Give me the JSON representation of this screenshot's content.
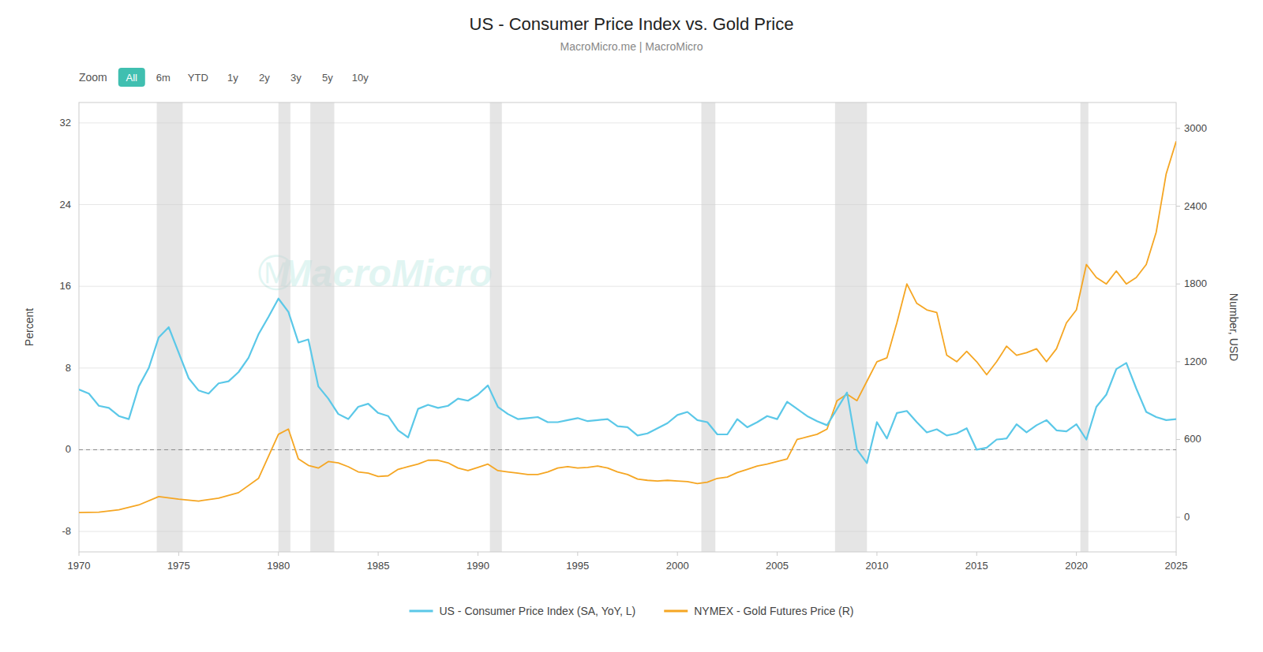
{
  "chart_data": {
    "type": "line",
    "title": "US - Consumer Price Index vs. Gold Price",
    "subtitle": "MacroMicro.me | MacroMicro",
    "ylabel": "Percent",
    "y2label": "Number, USD",
    "xlim": [
      1970,
      2025
    ],
    "xticks": [
      1970,
      1975,
      1980,
      1985,
      1990,
      1995,
      2000,
      2005,
      2010,
      2015,
      2020,
      2025
    ],
    "ylim": [
      -10,
      34
    ],
    "yticks": [
      -8,
      0,
      8,
      16,
      24,
      32
    ],
    "y2lim": [
      -267,
      3200
    ],
    "y2ticks": [
      0,
      600,
      1200,
      1800,
      2400,
      3000
    ],
    "grid": true,
    "legend": "bottom",
    "hlines": [
      0
    ],
    "recession_color": "#CCCCCC",
    "recession_bands": [
      [
        1973.9,
        1975.2
      ],
      [
        1980.0,
        1980.6
      ],
      [
        1981.6,
        1982.8
      ],
      [
        1990.6,
        1991.2
      ],
      [
        2001.2,
        2001.9
      ],
      [
        2007.9,
        2009.5
      ],
      [
        2020.2,
        2020.6
      ]
    ],
    "zoom": {
      "label": "Zoom",
      "buttons": [
        "All",
        "6m",
        "YTD",
        "1y",
        "2y",
        "3y",
        "5y",
        "10y"
      ],
      "active": "All",
      "active_color": "#40BFB0"
    },
    "watermark": {
      "symbol": "Ⓜ",
      "text": "MacroMicro",
      "color": "#40BFB0"
    },
    "series": [
      {
        "name": "US - Consumer Price Index (SA, YoY, L)",
        "color": "#5BC8E8",
        "axis": "y",
        "x": [
          1970,
          1970.5,
          1971,
          1971.5,
          1972,
          1972.5,
          1973,
          1973.5,
          1974,
          1974.5,
          1975,
          1975.5,
          1976,
          1976.5,
          1977,
          1977.5,
          1978,
          1978.5,
          1979,
          1979.5,
          1980,
          1980.5,
          1981,
          1981.5,
          1982,
          1982.5,
          1983,
          1983.5,
          1984,
          1984.5,
          1985,
          1985.5,
          1986,
          1986.5,
          1987,
          1987.5,
          1988,
          1988.5,
          1989,
          1989.5,
          1990,
          1990.5,
          1991,
          1991.5,
          1992,
          1992.5,
          1993,
          1993.5,
          1994,
          1994.5,
          1995,
          1995.5,
          1996,
          1996.5,
          1997,
          1997.5,
          1998,
          1998.5,
          1999,
          1999.5,
          2000,
          2000.5,
          2001,
          2001.5,
          2002,
          2002.5,
          2003,
          2003.5,
          2004,
          2004.5,
          2005,
          2005.5,
          2006,
          2006.5,
          2007,
          2007.5,
          2008,
          2008.5,
          2009,
          2009.5,
          2010,
          2010.5,
          2011,
          2011.5,
          2012,
          2012.5,
          2013,
          2013.5,
          2014,
          2014.5,
          2015,
          2015.5,
          2016,
          2016.5,
          2017,
          2017.5,
          2018,
          2018.5,
          2019,
          2019.5,
          2020,
          2020.5,
          2021,
          2021.5,
          2022,
          2022.5,
          2023,
          2023.5,
          2024,
          2024.5,
          2025
        ],
        "values": [
          5.9,
          5.5,
          4.3,
          4.1,
          3.3,
          3.0,
          6.2,
          8.0,
          11.0,
          12.0,
          9.5,
          7.0,
          5.8,
          5.5,
          6.5,
          6.7,
          7.6,
          9.0,
          11.3,
          13.0,
          14.8,
          13.5,
          10.5,
          10.8,
          6.2,
          5.0,
          3.5,
          3.0,
          4.2,
          4.5,
          3.6,
          3.3,
          1.9,
          1.2,
          4.0,
          4.4,
          4.1,
          4.3,
          5.0,
          4.8,
          5.4,
          6.3,
          4.2,
          3.5,
          3.0,
          3.1,
          3.2,
          2.7,
          2.7,
          2.9,
          3.1,
          2.8,
          2.9,
          3.0,
          2.3,
          2.2,
          1.4,
          1.6,
          2.1,
          2.6,
          3.4,
          3.7,
          2.9,
          2.7,
          1.5,
          1.5,
          3.0,
          2.2,
          2.7,
          3.3,
          3.0,
          4.7,
          4.0,
          3.3,
          2.8,
          2.4,
          4.0,
          5.6,
          0.0,
          -1.3,
          2.7,
          1.1,
          3.6,
          3.8,
          2.7,
          1.7,
          2.0,
          1.4,
          1.6,
          2.1,
          0.0,
          0.2,
          1.0,
          1.1,
          2.5,
          1.7,
          2.4,
          2.9,
          1.9,
          1.8,
          2.5,
          1.0,
          4.2,
          5.4,
          7.9,
          8.5,
          6.0,
          3.7,
          3.2,
          2.9,
          3.0
        ]
      },
      {
        "name": "NYMEX - Gold Futures Price (R)",
        "color": "#F5A623",
        "axis": "y2",
        "x": [
          1970,
          1971,
          1972,
          1973,
          1974,
          1975,
          1976,
          1977,
          1978,
          1979,
          1980,
          1980.5,
          1981,
          1981.5,
          1982,
          1982.5,
          1983,
          1983.5,
          1984,
          1984.5,
          1985,
          1985.5,
          1986,
          1986.5,
          1987,
          1987.5,
          1988,
          1988.5,
          1989,
          1989.5,
          1990,
          1990.5,
          1991,
          1991.5,
          1992,
          1992.5,
          1993,
          1993.5,
          1994,
          1994.5,
          1995,
          1995.5,
          1996,
          1996.5,
          1997,
          1997.5,
          1998,
          1998.5,
          1999,
          1999.5,
          2000,
          2000.5,
          2001,
          2001.5,
          2002,
          2002.5,
          2003,
          2003.5,
          2004,
          2004.5,
          2005,
          2005.5,
          2006,
          2006.5,
          2007,
          2007.5,
          2008,
          2008.5,
          2009,
          2009.5,
          2010,
          2010.5,
          2011,
          2011.5,
          2012,
          2012.5,
          2013,
          2013.5,
          2014,
          2014.5,
          2015,
          2015.5,
          2016,
          2016.5,
          2017,
          2017.5,
          2018,
          2018.5,
          2019,
          2019.5,
          2020,
          2020.5,
          2021,
          2021.5,
          2022,
          2022.5,
          2023,
          2023.5,
          2024,
          2024.5,
          2025
        ],
        "values": [
          36,
          40,
          58,
          95,
          160,
          140,
          125,
          148,
          190,
          300,
          640,
          680,
          450,
          400,
          380,
          430,
          420,
          390,
          350,
          340,
          315,
          320,
          370,
          390,
          410,
          440,
          440,
          420,
          380,
          360,
          385,
          410,
          360,
          350,
          340,
          330,
          330,
          350,
          380,
          390,
          380,
          385,
          395,
          380,
          350,
          330,
          295,
          285,
          280,
          285,
          280,
          275,
          260,
          270,
          300,
          310,
          345,
          370,
          395,
          410,
          430,
          450,
          600,
          620,
          640,
          680,
          900,
          950,
          900,
          1050,
          1200,
          1230,
          1500,
          1800,
          1650,
          1600,
          1580,
          1250,
          1200,
          1280,
          1200,
          1100,
          1200,
          1320,
          1250,
          1270,
          1300,
          1200,
          1300,
          1500,
          1600,
          1950,
          1850,
          1800,
          1900,
          1800,
          1850,
          1950,
          2200,
          2650,
          2900
        ]
      }
    ]
  }
}
